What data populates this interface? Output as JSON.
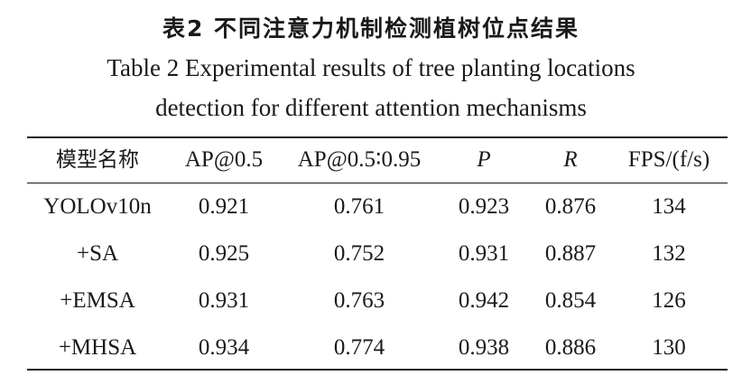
{
  "caption": {
    "cn": "表2  不同注意力机制检测植树位点结果",
    "en_line1": "Table 2  Experimental results of  tree planting locations",
    "en_line2": "detection for different attention mechanisms"
  },
  "table": {
    "headers": [
      "模型名称",
      "AP@0.5",
      "AP@0.5∶0.95",
      "P",
      "R",
      "FPS/(f/s)"
    ],
    "rows": [
      [
        "YOLOv10n",
        "0.921",
        "0.761",
        "0.923",
        "0.876",
        "134"
      ],
      [
        "+SA",
        "0.925",
        "0.752",
        "0.931",
        "0.887",
        "132"
      ],
      [
        "+EMSA",
        "0.931",
        "0.763",
        "0.942",
        "0.854",
        "126"
      ],
      [
        "+MHSA",
        "0.934",
        "0.774",
        "0.938",
        "0.886",
        "130"
      ]
    ]
  }
}
